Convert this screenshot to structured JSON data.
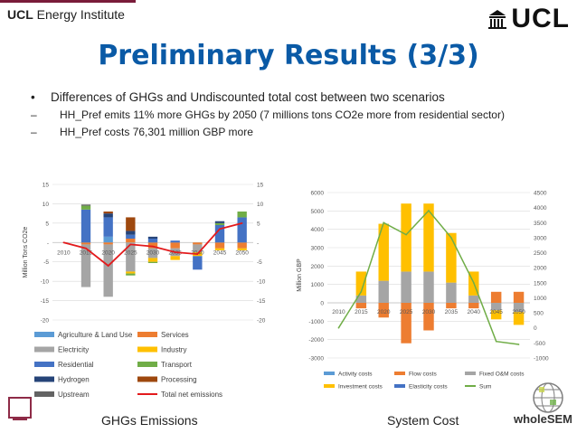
{
  "header": {
    "brand_bold": "UCL",
    "brand_rest": " Energy Institute",
    "logo_text": "UCL",
    "partner_logo": "wholeSEM"
  },
  "slide": {
    "title": "Preliminary Results (3/3)",
    "bullet_main": "Differences of GHGs and Undiscounted total cost between two scenarios",
    "sub_bullets": [
      "HH_Pref emits 11% more GHGs by 2050 (7 millions tons CO2e more from residential sector)",
      "HH_Pref costs 76,301 million GBP more"
    ],
    "caption_left": "GHGs Emissions",
    "caption_right": "System Cost"
  },
  "chart_data": [
    {
      "type": "bar",
      "stacked": true,
      "categories": [
        "2010",
        "2015",
        "2020",
        "2025",
        "2030",
        "2035",
        "2040",
        "2045",
        "2050"
      ],
      "ylabel": "Million Tons CO2e",
      "ylim": [
        -20,
        15
      ],
      "y_ticks": [
        15,
        10,
        5,
        0,
        -5,
        -10,
        -15,
        -20
      ],
      "y_tick_labels": [
        "15",
        "10",
        "5",
        "-",
        "-5",
        "-10",
        "-15",
        "-20"
      ],
      "secondary_y_tick_labels": [
        "15",
        "10",
        "5",
        "-",
        "-5",
        "-10",
        "-15",
        "-20"
      ],
      "grid": true,
      "legend_position": "bottom",
      "colors": {
        "Agriculture & Land Use": "#5b9bd5",
        "Services": "#ed7d31",
        "Electricity": "#a5a5a5",
        "Industry": "#ffc000",
        "Residential": "#4472c4",
        "Transport": "#70ad47",
        "Hydrogen": "#264478",
        "Processing": "#9e480e",
        "Upstream": "#636363",
        "Total net emissions": "#e31a1c"
      },
      "series": [
        {
          "name": "Agriculture & Land Use",
          "values": [
            0,
            0,
            1.5,
            0,
            0,
            0,
            0,
            0,
            0
          ]
        },
        {
          "name": "Services",
          "values": [
            0,
            -0.5,
            -0.5,
            1.0,
            -1.5,
            -1.5,
            -0.5,
            -1.5,
            -1.5
          ]
        },
        {
          "name": "Electricity",
          "values": [
            0,
            -11.0,
            -13.5,
            -7.5,
            -2.5,
            -2.0,
            -2.0,
            0,
            0
          ]
        },
        {
          "name": "Industry",
          "values": [
            0,
            0,
            0,
            -0.5,
            -1.0,
            -1.0,
            -1.0,
            -0.5,
            -0.5
          ]
        },
        {
          "name": "Residential",
          "values": [
            0,
            8.5,
            5.0,
            1.0,
            1.0,
            0.5,
            -3.5,
            4.5,
            6.5
          ]
        },
        {
          "name": "Transport",
          "values": [
            0,
            1.0,
            0,
            -0.5,
            -0.3,
            0,
            0,
            0.5,
            1.5
          ]
        },
        {
          "name": "Hydrogen",
          "values": [
            0,
            0,
            1.0,
            1.0,
            0.5,
            0,
            0,
            0.5,
            0
          ]
        },
        {
          "name": "Processing",
          "values": [
            0,
            0,
            0.5,
            3.5,
            0,
            0,
            0,
            0,
            0
          ]
        },
        {
          "name": "Upstream",
          "values": [
            0,
            0.3,
            0,
            0,
            0,
            0,
            0,
            0,
            0
          ]
        },
        {
          "name": "Total net emissions",
          "type": "line",
          "values": [
            0,
            -1.5,
            -6.0,
            -0.5,
            -1.0,
            -2.5,
            -3.0,
            3.5,
            5.0
          ]
        }
      ]
    },
    {
      "type": "bar",
      "stacked": true,
      "categories": [
        "2010",
        "2015",
        "2020",
        "2025",
        "2030",
        "2035",
        "2040",
        "2045",
        "2050"
      ],
      "ylabel": "Million GBP",
      "ylim": [
        -3000,
        6000
      ],
      "y_ticks": [
        6000,
        5000,
        4000,
        3000,
        2000,
        1000,
        0,
        -1000,
        -2000,
        -3000
      ],
      "secondary_ylim": [
        -1000,
        4500
      ],
      "secondary_y_ticks": [
        4500,
        4000,
        3500,
        3000,
        2500,
        2000,
        1500,
        1000,
        500,
        0,
        -500,
        -1000
      ],
      "grid": true,
      "legend_position": "bottom",
      "colors": {
        "Activity costs": "#5b9bd5",
        "Flow costs": "#ed7d31",
        "Fixed O&M costs": "#a5a5a5",
        "Investment costs": "#ffc000",
        "Elasticity costs": "#4472c4",
        "Sum": "#70ad47"
      },
      "series": [
        {
          "name": "Activity costs",
          "values": [
            0,
            0,
            0,
            0,
            0,
            0,
            0,
            0,
            0
          ]
        },
        {
          "name": "Flow costs",
          "values": [
            0,
            -300,
            -800,
            -2200,
            -1500,
            -300,
            -300,
            600,
            600
          ]
        },
        {
          "name": "Fixed O&M costs",
          "values": [
            0,
            400,
            1200,
            1700,
            1700,
            1100,
            400,
            -400,
            -500
          ]
        },
        {
          "name": "Investment costs",
          "values": [
            0,
            1300,
            3100,
            3700,
            3700,
            2700,
            1300,
            -500,
            -700
          ]
        },
        {
          "name": "Elasticity costs",
          "values": [
            0,
            0,
            0,
            0,
            0,
            0,
            0,
            0,
            0
          ]
        },
        {
          "name": "Sum",
          "type": "line",
          "axis": "secondary",
          "values": [
            0,
            1200,
            3500,
            3100,
            3900,
            3000,
            1500,
            -450,
            -550
          ]
        }
      ]
    }
  ]
}
